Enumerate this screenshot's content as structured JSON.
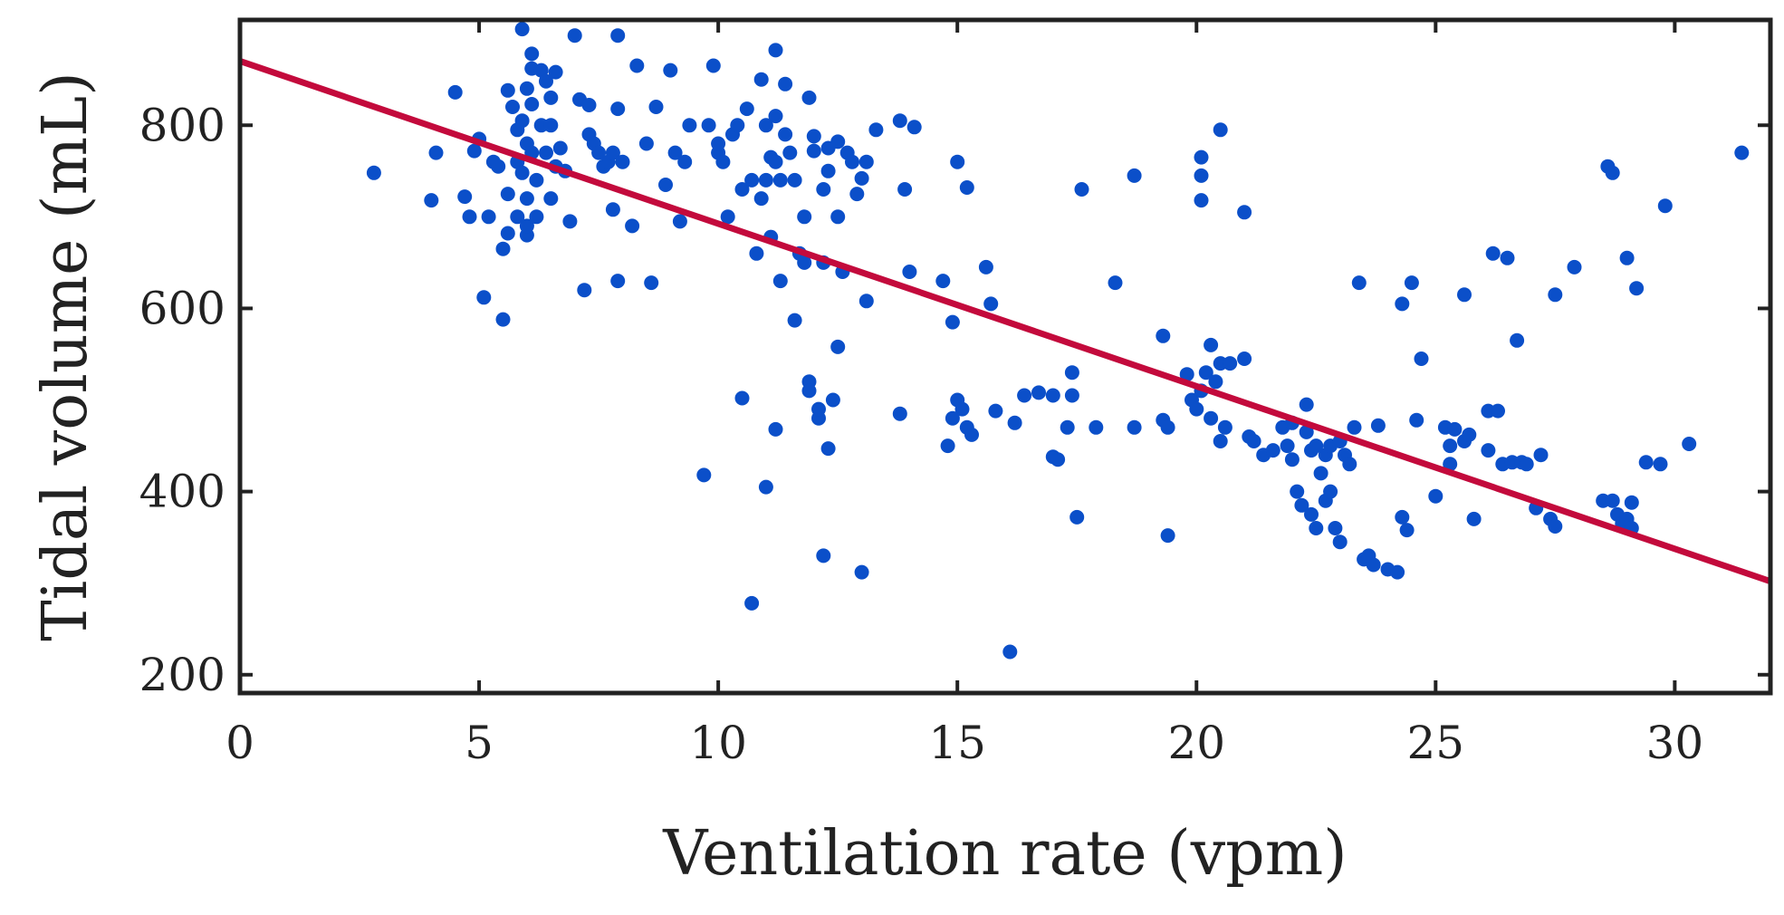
{
  "chart_data": {
    "type": "scatter",
    "title": "",
    "xlabel": "Ventilation rate (vpm)",
    "ylabel": "Tidal volume (mL)",
    "xlim": [
      0,
      32
    ],
    "ylim": [
      180,
      915
    ],
    "xticks": [
      0,
      5,
      10,
      15,
      20,
      25,
      30
    ],
    "yticks": [
      200,
      400,
      600,
      800
    ],
    "grid": false,
    "colors": {
      "points": "#0b4fc9",
      "fit_line": "#c30a3c",
      "axes": "#222222"
    },
    "series": [
      {
        "name": "observations",
        "points": [
          [
            2.8,
            748
          ],
          [
            4.0,
            718
          ],
          [
            4.1,
            770
          ],
          [
            4.5,
            836
          ],
          [
            4.7,
            722
          ],
          [
            4.8,
            700
          ],
          [
            4.9,
            772
          ],
          [
            5.0,
            785
          ],
          [
            5.1,
            612
          ],
          [
            5.2,
            700
          ],
          [
            5.3,
            760
          ],
          [
            5.4,
            755
          ],
          [
            5.5,
            588
          ],
          [
            5.5,
            665
          ],
          [
            5.6,
            682
          ],
          [
            5.6,
            725
          ],
          [
            5.6,
            838
          ],
          [
            5.7,
            820
          ],
          [
            5.8,
            795
          ],
          [
            5.8,
            760
          ],
          [
            5.8,
            700
          ],
          [
            5.9,
            748
          ],
          [
            5.9,
            905
          ],
          [
            5.9,
            805
          ],
          [
            6.0,
            840
          ],
          [
            6.0,
            780
          ],
          [
            6.0,
            720
          ],
          [
            6.0,
            680
          ],
          [
            6.0,
            690
          ],
          [
            6.1,
            862
          ],
          [
            6.1,
            878
          ],
          [
            6.1,
            823
          ],
          [
            6.1,
            770
          ],
          [
            6.2,
            740
          ],
          [
            6.2,
            700
          ],
          [
            6.3,
            860
          ],
          [
            6.3,
            800
          ],
          [
            6.4,
            848
          ],
          [
            6.4,
            770
          ],
          [
            6.5,
            720
          ],
          [
            6.5,
            830
          ],
          [
            6.5,
            800
          ],
          [
            6.6,
            858
          ],
          [
            6.6,
            755
          ],
          [
            6.7,
            775
          ],
          [
            6.8,
            750
          ],
          [
            6.9,
            695
          ],
          [
            7.0,
            898
          ],
          [
            7.1,
            828
          ],
          [
            7.2,
            620
          ],
          [
            7.3,
            822
          ],
          [
            7.3,
            790
          ],
          [
            7.4,
            780
          ],
          [
            7.5,
            770
          ],
          [
            7.6,
            755
          ],
          [
            7.7,
            760
          ],
          [
            7.8,
            708
          ],
          [
            7.8,
            770
          ],
          [
            7.9,
            898
          ],
          [
            7.9,
            818
          ],
          [
            7.9,
            630
          ],
          [
            8.0,
            760
          ],
          [
            8.2,
            690
          ],
          [
            8.3,
            865
          ],
          [
            8.5,
            780
          ],
          [
            8.6,
            628
          ],
          [
            8.7,
            820
          ],
          [
            8.9,
            735
          ],
          [
            9.0,
            860
          ],
          [
            9.1,
            770
          ],
          [
            9.2,
            695
          ],
          [
            9.3,
            760
          ],
          [
            9.4,
            800
          ],
          [
            9.7,
            418
          ],
          [
            9.8,
            800
          ],
          [
            9.9,
            865
          ],
          [
            10.0,
            770
          ],
          [
            10.0,
            780
          ],
          [
            10.1,
            760
          ],
          [
            10.2,
            700
          ],
          [
            10.3,
            790
          ],
          [
            10.4,
            800
          ],
          [
            10.5,
            730
          ],
          [
            10.6,
            818
          ],
          [
            10.7,
            740
          ],
          [
            10.8,
            660
          ],
          [
            10.9,
            720
          ],
          [
            10.9,
            850
          ],
          [
            11.0,
            800
          ],
          [
            11.0,
            740
          ],
          [
            11.1,
            765
          ],
          [
            11.1,
            678
          ],
          [
            11.2,
            810
          ],
          [
            11.2,
            882
          ],
          [
            11.2,
            760
          ],
          [
            11.3,
            630
          ],
          [
            11.3,
            740
          ],
          [
            11.4,
            845
          ],
          [
            11.4,
            790
          ],
          [
            11.5,
            770
          ],
          [
            11.6,
            740
          ],
          [
            11.7,
            660
          ],
          [
            11.8,
            650
          ],
          [
            11.8,
            700
          ],
          [
            11.9,
            830
          ],
          [
            11.9,
            520
          ],
          [
            12.0,
            772
          ],
          [
            12.0,
            788
          ],
          [
            12.1,
            480
          ],
          [
            12.1,
            490
          ],
          [
            12.2,
            730
          ],
          [
            12.2,
            650
          ],
          [
            12.3,
            775
          ],
          [
            12.3,
            750
          ],
          [
            12.4,
            500
          ],
          [
            12.5,
            782
          ],
          [
            12.5,
            700
          ],
          [
            12.6,
            640
          ],
          [
            12.7,
            770
          ],
          [
            12.8,
            760
          ],
          [
            12.9,
            725
          ],
          [
            13.0,
            742
          ],
          [
            13.1,
            760
          ],
          [
            13.3,
            795
          ],
          [
            13.8,
            805
          ],
          [
            13.9,
            730
          ],
          [
            10.5,
            502
          ],
          [
            11.0,
            405
          ],
          [
            11.2,
            468
          ],
          [
            10.7,
            278
          ],
          [
            11.6,
            587
          ],
          [
            11.9,
            510
          ],
          [
            12.2,
            330
          ],
          [
            12.3,
            447
          ],
          [
            12.5,
            558
          ],
          [
            13.0,
            312
          ],
          [
            13.1,
            608
          ],
          [
            13.8,
            485
          ],
          [
            14.0,
            640
          ],
          [
            14.1,
            798
          ],
          [
            14.7,
            630
          ],
          [
            14.8,
            450
          ],
          [
            14.9,
            480
          ],
          [
            14.9,
            585
          ],
          [
            15.0,
            760
          ],
          [
            15.0,
            500
          ],
          [
            15.1,
            490
          ],
          [
            15.2,
            470
          ],
          [
            15.2,
            732
          ],
          [
            15.3,
            462
          ],
          [
            15.6,
            645
          ],
          [
            15.7,
            605
          ],
          [
            15.8,
            488
          ],
          [
            16.1,
            225
          ],
          [
            16.2,
            475
          ],
          [
            16.4,
            505
          ],
          [
            16.7,
            508
          ],
          [
            17.0,
            505
          ],
          [
            17.0,
            438
          ],
          [
            17.1,
            435
          ],
          [
            17.3,
            470
          ],
          [
            17.4,
            530
          ],
          [
            17.4,
            505
          ],
          [
            17.5,
            372
          ],
          [
            17.6,
            730
          ],
          [
            17.9,
            470
          ],
          [
            18.3,
            628
          ],
          [
            18.7,
            745
          ],
          [
            18.7,
            470
          ],
          [
            19.3,
            570
          ],
          [
            19.3,
            478
          ],
          [
            19.4,
            470
          ],
          [
            19.4,
            352
          ],
          [
            19.8,
            528
          ],
          [
            19.9,
            500
          ],
          [
            20.0,
            490
          ],
          [
            20.1,
            765
          ],
          [
            20.1,
            510
          ],
          [
            20.1,
            718
          ],
          [
            20.1,
            745
          ],
          [
            20.2,
            530
          ],
          [
            20.3,
            480
          ],
          [
            20.3,
            560
          ],
          [
            20.4,
            520
          ],
          [
            20.5,
            455
          ],
          [
            20.5,
            540
          ],
          [
            20.5,
            795
          ],
          [
            20.6,
            470
          ],
          [
            20.7,
            540
          ],
          [
            21.0,
            705
          ],
          [
            21.0,
            545
          ],
          [
            21.1,
            460
          ],
          [
            21.2,
            455
          ],
          [
            21.4,
            440
          ],
          [
            21.6,
            445
          ],
          [
            21.8,
            470
          ],
          [
            21.9,
            450
          ],
          [
            22.0,
            475
          ],
          [
            22.0,
            435
          ],
          [
            22.1,
            400
          ],
          [
            22.2,
            385
          ],
          [
            22.3,
            465
          ],
          [
            22.3,
            495
          ],
          [
            22.4,
            445
          ],
          [
            22.4,
            375
          ],
          [
            22.5,
            450
          ],
          [
            22.5,
            360
          ],
          [
            22.6,
            420
          ],
          [
            22.7,
            440
          ],
          [
            22.7,
            390
          ],
          [
            22.8,
            450
          ],
          [
            22.8,
            400
          ],
          [
            22.9,
            360
          ],
          [
            23.0,
            455
          ],
          [
            23.0,
            345
          ],
          [
            23.1,
            440
          ],
          [
            23.2,
            430
          ],
          [
            23.3,
            470
          ],
          [
            23.4,
            628
          ],
          [
            23.5,
            326
          ],
          [
            23.6,
            330
          ],
          [
            23.7,
            320
          ],
          [
            23.8,
            472
          ],
          [
            24.0,
            315
          ],
          [
            24.2,
            312
          ],
          [
            24.3,
            605
          ],
          [
            24.3,
            372
          ],
          [
            24.4,
            358
          ],
          [
            24.5,
            628
          ],
          [
            24.6,
            478
          ],
          [
            24.7,
            545
          ],
          [
            25.0,
            395
          ],
          [
            25.2,
            470
          ],
          [
            25.3,
            450
          ],
          [
            25.3,
            430
          ],
          [
            25.4,
            468
          ],
          [
            25.6,
            455
          ],
          [
            25.6,
            615
          ],
          [
            25.7,
            462
          ],
          [
            25.8,
            370
          ],
          [
            26.1,
            445
          ],
          [
            26.1,
            488
          ],
          [
            26.2,
            660
          ],
          [
            26.3,
            488
          ],
          [
            26.4,
            430
          ],
          [
            26.5,
            655
          ],
          [
            26.6,
            432
          ],
          [
            26.7,
            565
          ],
          [
            26.8,
            432
          ],
          [
            26.9,
            430
          ],
          [
            27.1,
            382
          ],
          [
            27.2,
            440
          ],
          [
            27.4,
            370
          ],
          [
            27.5,
            615
          ],
          [
            27.5,
            362
          ],
          [
            27.9,
            645
          ],
          [
            28.5,
            390
          ],
          [
            28.6,
            755
          ],
          [
            28.7,
            390
          ],
          [
            28.7,
            748
          ],
          [
            28.8,
            375
          ],
          [
            28.9,
            365
          ],
          [
            29.0,
            655
          ],
          [
            29.0,
            370
          ],
          [
            29.1,
            360
          ],
          [
            29.1,
            388
          ],
          [
            29.2,
            622
          ],
          [
            29.4,
            432
          ],
          [
            29.7,
            430
          ],
          [
            29.8,
            712
          ],
          [
            30.3,
            452
          ],
          [
            31.4,
            770
          ]
        ]
      }
    ],
    "fit_line": {
      "name": "linear fit",
      "x": [
        0,
        32
      ],
      "y": [
        870,
        302
      ]
    }
  }
}
